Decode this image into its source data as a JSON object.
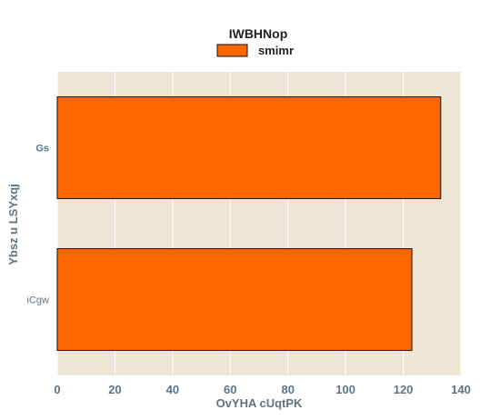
{
  "chart_data": {
    "type": "bar",
    "orientation": "horizontal",
    "categories": [
      "Gs",
      "iCgw"
    ],
    "series": [
      {
        "name": "smimr",
        "values": [
          133,
          123
        ]
      }
    ],
    "legend": {
      "title": "IWBHNop",
      "placement": "top-center"
    },
    "xlabel": "OvYHA cUqtPK",
    "ylabel": "Ybsz  u LSYxqj",
    "xlim": [
      0,
      140
    ],
    "xticks": [
      0,
      20,
      40,
      60,
      80,
      100,
      120,
      140
    ],
    "grid": true,
    "colors": {
      "bar": "#ff6600",
      "bar_edge": "#111111",
      "plot_background": "#ede6d5",
      "grid": "#ffffff"
    }
  }
}
